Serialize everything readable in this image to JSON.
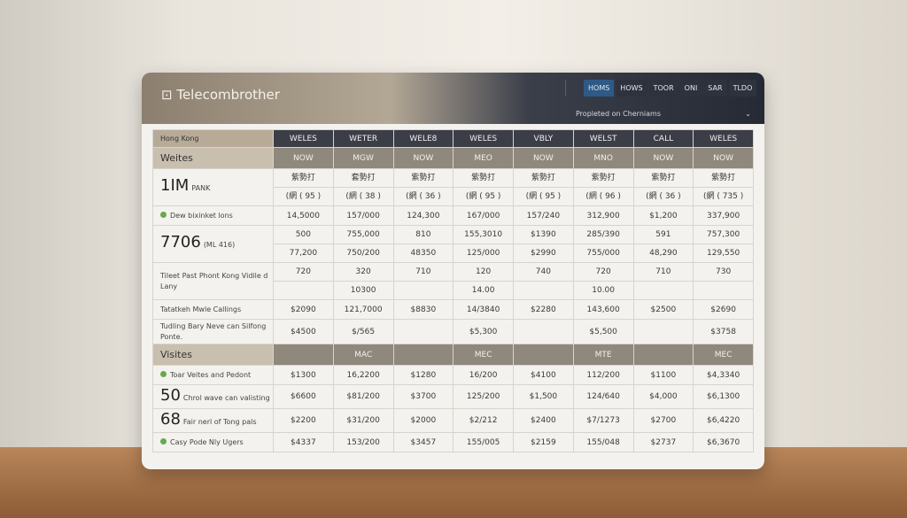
{
  "header": {
    "logo": "Telecombrother",
    "nav": [
      "HOMS",
      "HOWS",
      "TOOR",
      "ONI",
      "SAR",
      "TLDO"
    ],
    "active": 0,
    "dropdown": "Propleted on Cherniams"
  },
  "table": {
    "columns": [
      "Hong Kong",
      "WELES",
      "WETER",
      "WELE8",
      "WELES",
      "VBLY",
      "WELST",
      "CALL",
      "WELES"
    ],
    "rows": [
      {
        "kind": "section",
        "label": "Weites",
        "cells": [
          "NOW",
          "MGW",
          "NOW",
          "MEO",
          "NOW",
          "MNO",
          "NOW",
          "NOW"
        ]
      },
      {
        "big": "1IM",
        "label": "PANK",
        "lines": [
          [
            "紫勢打",
            "套勢打",
            "紫勢打",
            "紫勢打",
            "紫勢打",
            "紫勢打",
            "紫勢打",
            "紫勢打"
          ],
          [
            "(網 ( 95 )",
            "(網 ( 38 )",
            "(網 ( 36 )",
            "(網 ( 95 )",
            "(網 ( 95 )",
            "(網 ( 96 )",
            "(網 ( 36 )",
            "(網 ( 735 )"
          ]
        ]
      },
      {
        "icon": true,
        "label": "Dew bixinket lons",
        "lines": [
          [
            "14,5000",
            "157/000",
            "124,300",
            "167/000",
            "157/240",
            "312,900",
            "$1,200",
            "337,900"
          ]
        ]
      },
      {
        "big": "7706",
        "label": "(ML 416)",
        "lines": [
          [
            "500",
            "755,000",
            "810",
            "155,3010",
            "$1390",
            "285/390",
            "591",
            "757,300"
          ],
          [
            "77,200",
            "750/200",
            "48350",
            "125/000",
            "$2990",
            "755/000",
            "48,290",
            "129,550"
          ]
        ]
      },
      {
        "label": "Tileet Past Phont Kong Vidile d Lany",
        "lines": [
          [
            "720",
            "320",
            "710",
            "120",
            "740",
            "720",
            "710",
            "730"
          ],
          [
            "",
            "10300",
            "",
            "14.00",
            "",
            "10.00",
            "",
            ""
          ]
        ]
      },
      {
        "label": "Tatatkeh Mwle Callings",
        "lines": [
          [
            "$2090",
            "121,7000",
            "$8830",
            "14/3840",
            "$2280",
            "143,600",
            "$2500",
            "$2690"
          ]
        ]
      },
      {
        "label": "Tudling Bary Neve can Silfong Ponte.",
        "lines": [
          [
            "$4500",
            "$/565",
            "",
            "$5,300",
            "",
            "$5,500",
            "",
            "$3758"
          ]
        ]
      },
      {
        "kind": "section",
        "label": "Visites",
        "cells": [
          "",
          "MAC",
          "",
          "MEC",
          "",
          "MTE",
          "",
          "MEC"
        ]
      },
      {
        "icon": true,
        "label": "Toar Veites and Pedont",
        "lines": [
          [
            "$1300",
            "16,2200",
            "$1280",
            "16/200",
            "$4100",
            "112/200",
            "$1100",
            "$4,3340"
          ]
        ]
      },
      {
        "big": "50",
        "label": "Chrol wave can valisting",
        "lines": [
          [
            "$6600",
            "$81/200",
            "$3700",
            "125/200",
            "$1,500",
            "124/640",
            "$4,000",
            "$6,1300"
          ]
        ]
      },
      {
        "big": "68",
        "label": "Fair nerl of Tong pals",
        "lines": [
          [
            "$2200",
            "$31/200",
            "$2000",
            "$2/212",
            "$2400",
            "$7/1273",
            "$2700",
            "$6,4220"
          ]
        ]
      },
      {
        "icon": true,
        "label": "Casy Pode Nly Ugers",
        "lines": [
          [
            "$4337",
            "153/200",
            "$3457",
            "155/005",
            "$2159",
            "155/048",
            "$2737",
            "$6,3670"
          ]
        ]
      }
    ]
  }
}
